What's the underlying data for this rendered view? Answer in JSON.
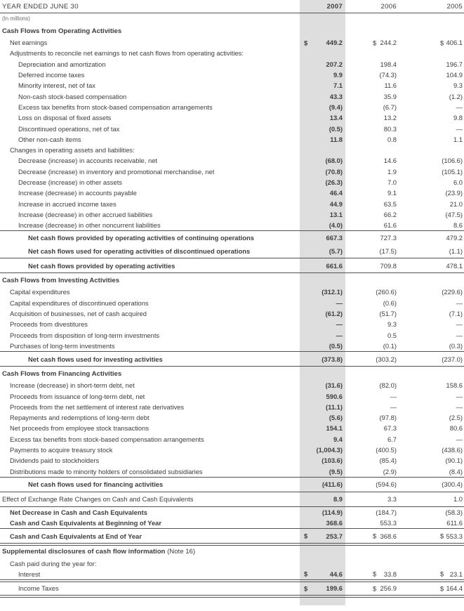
{
  "colors": {
    "highlight_band": "#dedede",
    "rule": "#525252",
    "text": "#3d3d3d"
  },
  "table": {
    "header": {
      "label": "YEAR ENDED JUNE 30",
      "years": [
        "2007",
        "2006",
        "2005"
      ]
    },
    "units_note": "(In millions)",
    "rows": [
      {
        "label": "Cash Flows from Operating Activities",
        "style": "section",
        "indent": 0
      },
      {
        "label": "Net earnings",
        "indent": 1,
        "dollar": true,
        "values": [
          "449.2",
          "244.2",
          "406.1"
        ]
      },
      {
        "label": "Adjustments to reconcile net earnings to net cash flows from operating activities:",
        "indent": 1
      },
      {
        "label": "Depreciation and amortization",
        "indent": 2,
        "values": [
          "207.2",
          "198.4",
          "196.7"
        ]
      },
      {
        "label": "Deferred income taxes",
        "indent": 2,
        "values": [
          "9.9",
          "(74.3)",
          "104.9"
        ]
      },
      {
        "label": "Minority interest, net of tax",
        "indent": 2,
        "values": [
          "7.1",
          "11.6",
          "9.3"
        ]
      },
      {
        "label": "Non-cash stock-based compensation",
        "indent": 2,
        "values": [
          "43.3",
          "35.9",
          "(1.2)"
        ]
      },
      {
        "label": "Excess tax benefits from stock-based compensation arrangements",
        "indent": 2,
        "values": [
          "(9.4)",
          "(6.7)",
          "—"
        ]
      },
      {
        "label": "Loss on disposal of fixed assets",
        "indent": 2,
        "values": [
          "13.4",
          "13.2",
          "9.8"
        ]
      },
      {
        "label": "Discontinued operations, net of tax",
        "indent": 2,
        "values": [
          "(0.5)",
          "80.3",
          "—"
        ]
      },
      {
        "label": "Other non-cash items",
        "indent": 2,
        "values": [
          "11.8",
          "0.8",
          "1.1"
        ]
      },
      {
        "label": "Changes in operating assets and liabilities:",
        "indent": 1
      },
      {
        "label": "Decrease (increase) in accounts receivable, net",
        "indent": 2,
        "values": [
          "(68.0)",
          "14.6",
          "(106.6)"
        ]
      },
      {
        "label": "Decrease (increase) in inventory and promotional merchandise, net",
        "indent": 2,
        "values": [
          "(70.8)",
          "1.9",
          "(105.1)"
        ]
      },
      {
        "label": "Decrease (increase) in other assets",
        "indent": 2,
        "values": [
          "(26.3)",
          "7.0",
          "6.0"
        ]
      },
      {
        "label": "Increase (decrease) in accounts payable",
        "indent": 2,
        "values": [
          "46.4",
          "9.1",
          "(23.9)"
        ]
      },
      {
        "label": "Increase in accrued income taxes",
        "indent": 2,
        "values": [
          "44.9",
          "63.5",
          "21.0"
        ]
      },
      {
        "label": "Increase (decrease) in other accrued liabilities",
        "indent": 2,
        "values": [
          "13.1",
          "66.2",
          "(47.5)"
        ]
      },
      {
        "label": "Increase (decrease) in other noncurrent liabilities",
        "indent": 2,
        "values": [
          "(4.0)",
          "61.6",
          "8.6"
        ],
        "rule_below": "single"
      },
      {
        "label": "Net cash flows provided by operating activities of continuing operations",
        "style": "total",
        "indent": 3,
        "values": [
          "667.3",
          "727.3",
          "479.2"
        ]
      },
      {
        "label": "Net cash flows used for operating activities of discontinued operations",
        "style": "total",
        "indent": 3,
        "values": [
          "(5.7)",
          "(17.5)",
          "(1.1)"
        ],
        "rule_below": "single"
      },
      {
        "label": "Net cash flows provided by operating activities",
        "style": "total",
        "padded": true,
        "indent": 3,
        "values": [
          "661.6",
          "709.8",
          "478.1"
        ],
        "rule_below": "single"
      },
      {
        "label": "Cash Flows from Investing Activities",
        "style": "section",
        "indent": 0
      },
      {
        "label": "Capital expenditures",
        "indent": 1,
        "values": [
          "(312.1)",
          "(260.6)",
          "(229.6)"
        ]
      },
      {
        "label": "Capital expenditures of discontinued operations",
        "indent": 1,
        "values": [
          "—",
          "(0.6)",
          "—"
        ]
      },
      {
        "label": "Acquisition of businesses, net of cash acquired",
        "indent": 1,
        "values": [
          "(61.2)",
          "(51.7)",
          "(7.1)"
        ]
      },
      {
        "label": "Proceeds from divestitures",
        "indent": 1,
        "values": [
          "—",
          "9.3",
          "—"
        ]
      },
      {
        "label": "Proceeds from disposition of long-term investments",
        "indent": 1,
        "values": [
          "—",
          "0.5",
          "—"
        ]
      },
      {
        "label": "Purchases of long-term investments",
        "indent": 1,
        "values": [
          "(0.5)",
          "(0.1)",
          "(0.3)"
        ],
        "rule_below": "single"
      },
      {
        "label": "Net cash flows used for investing activities",
        "style": "total",
        "padded": true,
        "indent": 3,
        "values": [
          "(373.8)",
          "(303.2)",
          "(237.0)"
        ],
        "rule_below": "single"
      },
      {
        "label": "Cash Flows from Financing Activities",
        "style": "section",
        "indent": 0
      },
      {
        "label": "Increase (decrease) in short-term debt, net",
        "indent": 1,
        "values": [
          "(31.6)",
          "(82.0)",
          "158.6"
        ]
      },
      {
        "label": "Proceeds from issuance of long-term debt, net",
        "indent": 1,
        "values": [
          "590.6",
          "—",
          "—"
        ]
      },
      {
        "label": "Proceeds from the net settlement of interest rate derivatives",
        "indent": 1,
        "values": [
          "(11.1)",
          "—",
          "—"
        ]
      },
      {
        "label": "Repayments and redemptions of long-term debt",
        "indent": 1,
        "values": [
          "(5.6)",
          "(97.8)",
          "(2.5)"
        ]
      },
      {
        "label": "Net proceeds from employee stock transactions",
        "indent": 1,
        "values": [
          "154.1",
          "67.3",
          "80.6"
        ]
      },
      {
        "label": "Excess tax benefits from stock-based compensation arrangements",
        "indent": 1,
        "values": [
          "9.4",
          "6.7",
          "—"
        ]
      },
      {
        "label": "Payments to acquire treasury stock",
        "indent": 1,
        "values": [
          "(1,004.3)",
          "(400.5)",
          "(438.6)"
        ]
      },
      {
        "label": "Dividends paid to stockholders",
        "indent": 1,
        "values": [
          "(103.6)",
          "(85.4)",
          "(90.1)"
        ]
      },
      {
        "label": "Distributions made to minority holders of consolidated subsidiaries",
        "indent": 1,
        "values": [
          "(9.5)",
          "(2.9)",
          "(8.4)"
        ],
        "rule_below": "single"
      },
      {
        "label": "Net cash flows used for financing activities",
        "style": "total",
        "padded": true,
        "indent": 3,
        "values": [
          "(411.6)",
          "(594.6)",
          "(300.4)"
        ],
        "rule_below": "single"
      },
      {
        "label": "Effect of Exchange Rate Changes on Cash and Cash Equivalents",
        "style": "plain",
        "padded": true,
        "indent": 0,
        "values": [
          "8.9",
          "3.3",
          "1.0"
        ],
        "rule_below": "single"
      },
      {
        "label": "Net Decrease in Cash and Cash Equivalents",
        "style": "bolditem",
        "indent": 1,
        "values": [
          "(114.9)",
          "(184.7)",
          "(58.3)"
        ]
      },
      {
        "label": "Cash and Cash Equivalents at Beginning of Year",
        "style": "bolditem",
        "indent": 1,
        "values": [
          "368.6",
          "553.3",
          "611.6"
        ],
        "rule_below": "single"
      },
      {
        "label": "Cash and Cash Equivalents at End of Year",
        "style": "bolditem",
        "padded": true,
        "indent": 1,
        "dollar": true,
        "values": [
          "253.7",
          "368.6",
          "553.3"
        ],
        "rule_below": "double"
      },
      {
        "label": "Supplemental disclosures of cash flow information",
        "suffix": " (Note 16)",
        "style": "section section4",
        "indent": 0
      },
      {
        "label": "Cash paid during the year for:",
        "indent": 1
      },
      {
        "label": "Interest",
        "indent": 2,
        "dollar": true,
        "values": [
          "44.6",
          "33.8",
          "23.1"
        ],
        "rule_below": "double"
      },
      {
        "label": "Income Taxes",
        "style": "item income-last",
        "indent": 2,
        "dollar": true,
        "values": [
          "199.6",
          "256.9",
          "164.4"
        ],
        "rule_below": "double"
      }
    ]
  }
}
